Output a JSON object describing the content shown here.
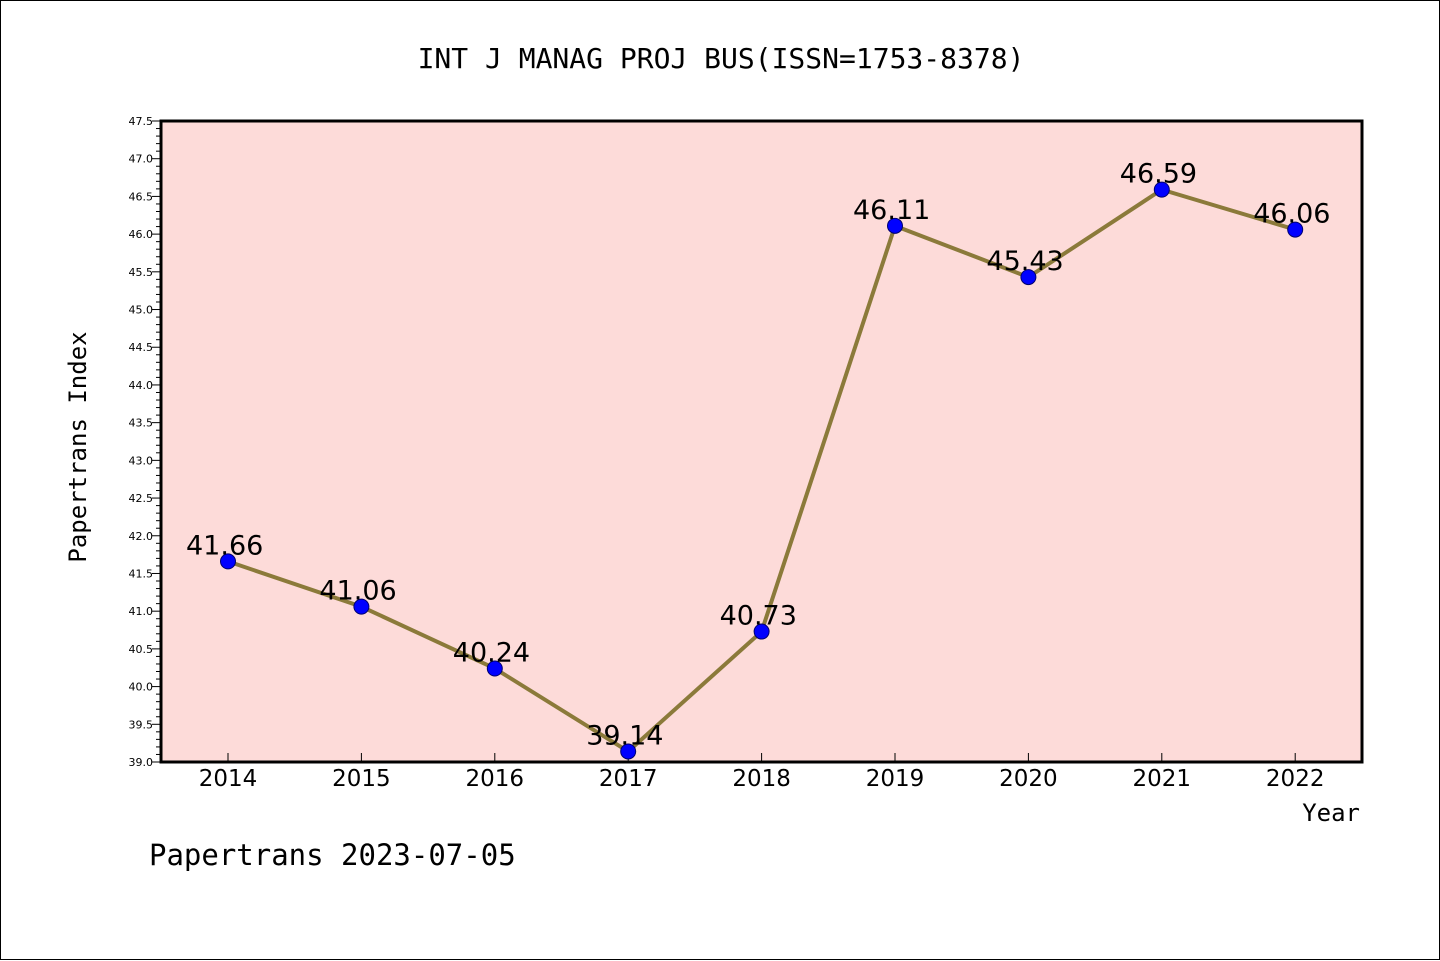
{
  "chart_data": {
    "type": "line",
    "title": "INT J MANAG PROJ BUS(ISSN=1753-8378)",
    "xlabel": "Year",
    "ylabel": "Papertrans Index",
    "categories": [
      "2014",
      "2015",
      "2016",
      "2017",
      "2018",
      "2019",
      "2020",
      "2021",
      "2022"
    ],
    "values": [
      41.66,
      41.06,
      40.24,
      39.14,
      40.73,
      46.11,
      45.43,
      46.59,
      46.06
    ],
    "data_labels": [
      "41.66",
      "41.06",
      "40.24",
      "39.14",
      "40.73",
      "46.11",
      "45.43",
      "46.59",
      "46.06"
    ],
    "ylim": [
      39.0,
      47.5
    ],
    "yticks": [
      "39.0",
      "39.5",
      "40.0",
      "40.5",
      "41.0",
      "41.5",
      "42.0",
      "42.5",
      "43.0",
      "43.5",
      "44.0",
      "44.5",
      "45.0",
      "45.5",
      "46.0",
      "46.5",
      "47.0",
      "47.5"
    ],
    "grid": false,
    "colors": {
      "plot_background": "#fddbd9",
      "line": "#8b7a3a",
      "marker": "#0000ff"
    }
  },
  "footer": {
    "watermark": "Papertrans 2023-07-05"
  }
}
